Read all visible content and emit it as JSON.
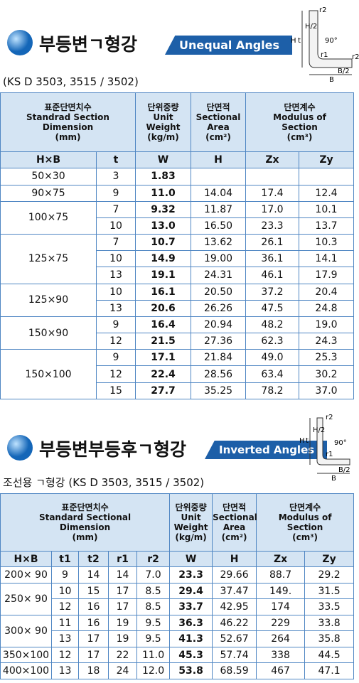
{
  "section1": {
    "title_ko": "부등변ㄱ형강",
    "title_en": "Unequal Angles",
    "standard": "(KS D 3503, 3515 / 3502)",
    "diagram": [
      "r2",
      "H/2",
      "t",
      "H",
      "90°",
      "r1",
      "r2",
      "B/2",
      "B"
    ],
    "table": {
      "headers": [
        [
          "표준단면치수",
          "Standrad Section",
          "Dimension",
          "(mm)"
        ],
        [
          "단위중량",
          "Unit",
          "Weight",
          "(kg/m)"
        ],
        [
          "단면적",
          "Sectional",
          "Area",
          "(cm²)"
        ],
        [
          "단면계수",
          "Modulus of",
          "Section",
          "(cm³)"
        ]
      ],
      "columns": [
        "H×B",
        "t",
        "W",
        "H",
        "Zx",
        "Zy"
      ],
      "groups": [
        {
          "size": "50×30",
          "rows": [
            [
              "3",
              "1.83",
              "",
              "",
              ""
            ]
          ]
        },
        {
          "size": "90×75",
          "rows": [
            [
              "9",
              "11.0",
              "14.04",
              "17.4",
              "12.4"
            ]
          ]
        },
        {
          "size": "100×75",
          "rows": [
            [
              "7",
              "9.32",
              "11.87",
              "17.0",
              "10.1"
            ],
            [
              "10",
              "13.0",
              "16.50",
              "23.3",
              "13.7"
            ]
          ]
        },
        {
          "size": "125×75",
          "rows": [
            [
              "7",
              "10.7",
              "13.62",
              "26.1",
              "10.3"
            ],
            [
              "10",
              "14.9",
              "19.00",
              "36.1",
              "14.1"
            ],
            [
              "13",
              "19.1",
              "24.31",
              "46.1",
              "17.9"
            ]
          ]
        },
        {
          "size": "125×90",
          "rows": [
            [
              "10",
              "16.1",
              "20.50",
              "37.2",
              "20.4"
            ],
            [
              "13",
              "20.6",
              "26.26",
              "47.5",
              "24.8"
            ]
          ]
        },
        {
          "size": "150×90",
          "rows": [
            [
              "9",
              "16.4",
              "20.94",
              "48.2",
              "19.0"
            ],
            [
              "12",
              "21.5",
              "27.36",
              "62.3",
              "24.3"
            ]
          ]
        },
        {
          "size": "150×100",
          "rows": [
            [
              "9",
              "17.1",
              "21.84",
              "49.0",
              "25.3"
            ],
            [
              "12",
              "22.4",
              "28.56",
              "63.4",
              "30.2"
            ],
            [
              "15",
              "27.7",
              "35.25",
              "78.2",
              "37.0"
            ]
          ]
        }
      ]
    }
  },
  "section2": {
    "title_ko": "부등변부등후ㄱ형강",
    "title_en": "Inverted Angles",
    "standard": "조선용 ㄱ형강 (KS D 3503, 3515 / 3502)",
    "diagram": [
      "r2",
      "H/2",
      "t",
      "H",
      "90°",
      "r1",
      "B/2",
      "B"
    ],
    "table": {
      "headers": [
        [
          "표준단면치수",
          "Standard Sectional",
          "Dimension",
          "(mm)"
        ],
        [
          "단위중량",
          "Unit",
          "Weight",
          "(kg/m)"
        ],
        [
          "단면적",
          "Sectional",
          "Area",
          "(cm²)"
        ],
        [
          "단면계수",
          "Modulus of",
          "Section",
          "(cm³)"
        ]
      ],
      "columns": [
        "H×B",
        "t1",
        "t2",
        "r1",
        "r2",
        "W",
        "H",
        "Zx",
        "Zy"
      ],
      "groups": [
        {
          "size": "200× 90",
          "rows": [
            [
              "9",
              "14",
              "14",
              "7.0",
              "23.3",
              "29.66",
              "88.7",
              "29.2"
            ]
          ]
        },
        {
          "size": "250× 90",
          "rows": [
            [
              "10",
              "15",
              "17",
              "8.5",
              "29.4",
              "37.47",
              "149.",
              "31.5"
            ],
            [
              "12",
              "16",
              "17",
              "8.5",
              "33.7",
              "42.95",
              "174",
              "33.5"
            ]
          ]
        },
        {
          "size": "300× 90",
          "rows": [
            [
              "11",
              "16",
              "19",
              "9.5",
              "36.3",
              "46.22",
              "229",
              "33.8"
            ],
            [
              "13",
              "17",
              "19",
              "9.5",
              "41.3",
              "52.67",
              "264",
              "35.8"
            ]
          ]
        },
        {
          "size": "350×100",
          "rows": [
            [
              "12",
              "17",
              "22",
              "11.0",
              "45.3",
              "57.74",
              "338",
              "44.5"
            ]
          ]
        },
        {
          "size": "400×100",
          "rows": [
            [
              "13",
              "18",
              "24",
              "12.0",
              "53.8",
              "68.59",
              "467",
              "47.1"
            ]
          ]
        }
      ]
    }
  }
}
